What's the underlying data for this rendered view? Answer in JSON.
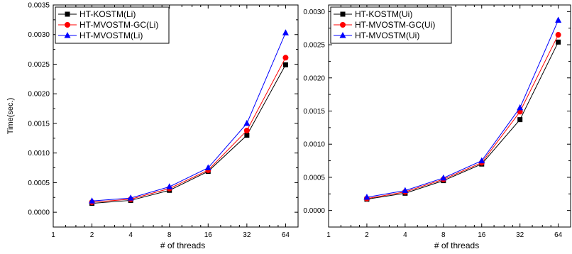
{
  "chart_data": [
    {
      "type": "line",
      "x_scale": "log2",
      "x": [
        2,
        4,
        8,
        16,
        32,
        64
      ],
      "xlim": [
        1,
        80
      ],
      "xticks": [
        "1",
        "2",
        "4",
        "8",
        "16",
        "32",
        "64"
      ],
      "xlabel": "# of threads",
      "ylabel": "Time(sec.)",
      "ylim": [
        -0.00025,
        0.0035
      ],
      "yticks": [
        "0.0000",
        "0.0005",
        "0.0010",
        "0.0015",
        "0.0020",
        "0.0025",
        "0.0030",
        "0.0035"
      ],
      "ytick_values": [
        0,
        0.0005,
        0.001,
        0.0015,
        0.002,
        0.0025,
        0.003,
        0.0035
      ],
      "grid": false,
      "legend_position": "top-left",
      "series": [
        {
          "name": "HT-KOSTM(Li)",
          "color": "#000000",
          "marker": "square",
          "values": [
            0.00015,
            0.0002,
            0.00037,
            0.00069,
            0.0013,
            0.00249
          ]
        },
        {
          "name": "HT-MVOSTM-GC(Li)",
          "color": "#ff0000",
          "marker": "circle",
          "values": [
            0.00017,
            0.00022,
            0.0004,
            0.00071,
            0.00138,
            0.00261
          ]
        },
        {
          "name": "HT-MVOSTM(Li)",
          "color": "#0000ff",
          "marker": "triangle",
          "values": [
            0.00019,
            0.00024,
            0.00043,
            0.00075,
            0.0015,
            0.00303
          ]
        }
      ]
    },
    {
      "type": "line",
      "x_scale": "log2",
      "x": [
        2,
        4,
        8,
        16,
        32,
        64
      ],
      "xlim": [
        1,
        80
      ],
      "xticks": [
        "1",
        "2",
        "4",
        "8",
        "16",
        "32",
        "64"
      ],
      "xlabel": "# of threads",
      "ylabel": "",
      "ylim": [
        -0.00025,
        0.0031
      ],
      "yticks": [
        "0.0000",
        "0.0005",
        "0.0010",
        "0.0015",
        "0.0020",
        "0.0025",
        "0.0030"
      ],
      "ytick_values": [
        0,
        0.0005,
        0.001,
        0.0015,
        0.002,
        0.0025,
        0.003
      ],
      "grid": false,
      "legend_position": "top-left",
      "series": [
        {
          "name": "HT-KOSTM(Ui)",
          "color": "#000000",
          "marker": "square",
          "values": [
            0.00017,
            0.00026,
            0.00045,
            0.0007,
            0.00137,
            0.00254
          ]
        },
        {
          "name": "HT-MVOSTM-GC(Ui)",
          "color": "#ff0000",
          "marker": "circle",
          "values": [
            0.00018,
            0.00028,
            0.00047,
            0.00072,
            0.00149,
            0.00265
          ]
        },
        {
          "name": "HT-MVOSTM(Ui)",
          "color": "#0000ff",
          "marker": "triangle",
          "values": [
            0.0002,
            0.0003,
            0.00049,
            0.00075,
            0.00155,
            0.00287
          ]
        }
      ]
    }
  ]
}
